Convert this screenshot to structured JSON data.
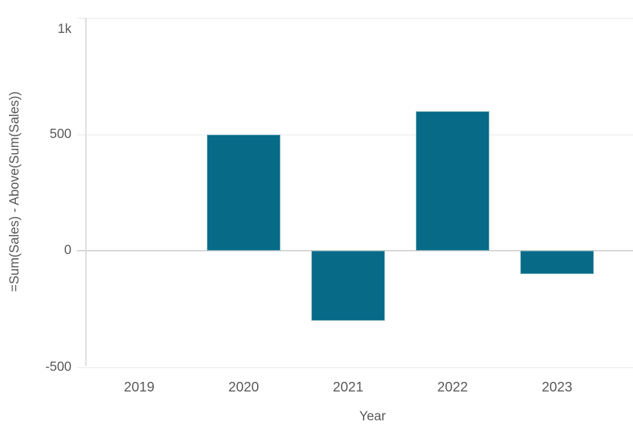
{
  "chart_data": {
    "type": "bar",
    "title": "",
    "xlabel": "Year",
    "ylabel": "=Sum(Sales) - Above(Sum(Sales))",
    "categories": [
      "2019",
      "2020",
      "2021",
      "2022",
      "2023"
    ],
    "values": [
      0,
      500,
      -300,
      600,
      -100
    ],
    "ylim": [
      -500,
      1000
    ],
    "y_ticks": [
      {
        "value": 1000,
        "label": "1k"
      },
      {
        "value": 500,
        "label": "500"
      },
      {
        "value": 0,
        "label": "0"
      },
      {
        "value": -500,
        "label": "-500"
      }
    ],
    "grid": true,
    "legend": "none",
    "colors": {
      "bar": "#076b88",
      "bar_border": "rgba(255,255,255,0.45)",
      "text": "#595959",
      "gridline": "#e7e7e7",
      "zero_line": "#d4d4d4",
      "axis_line": "#dcdcdc"
    }
  }
}
